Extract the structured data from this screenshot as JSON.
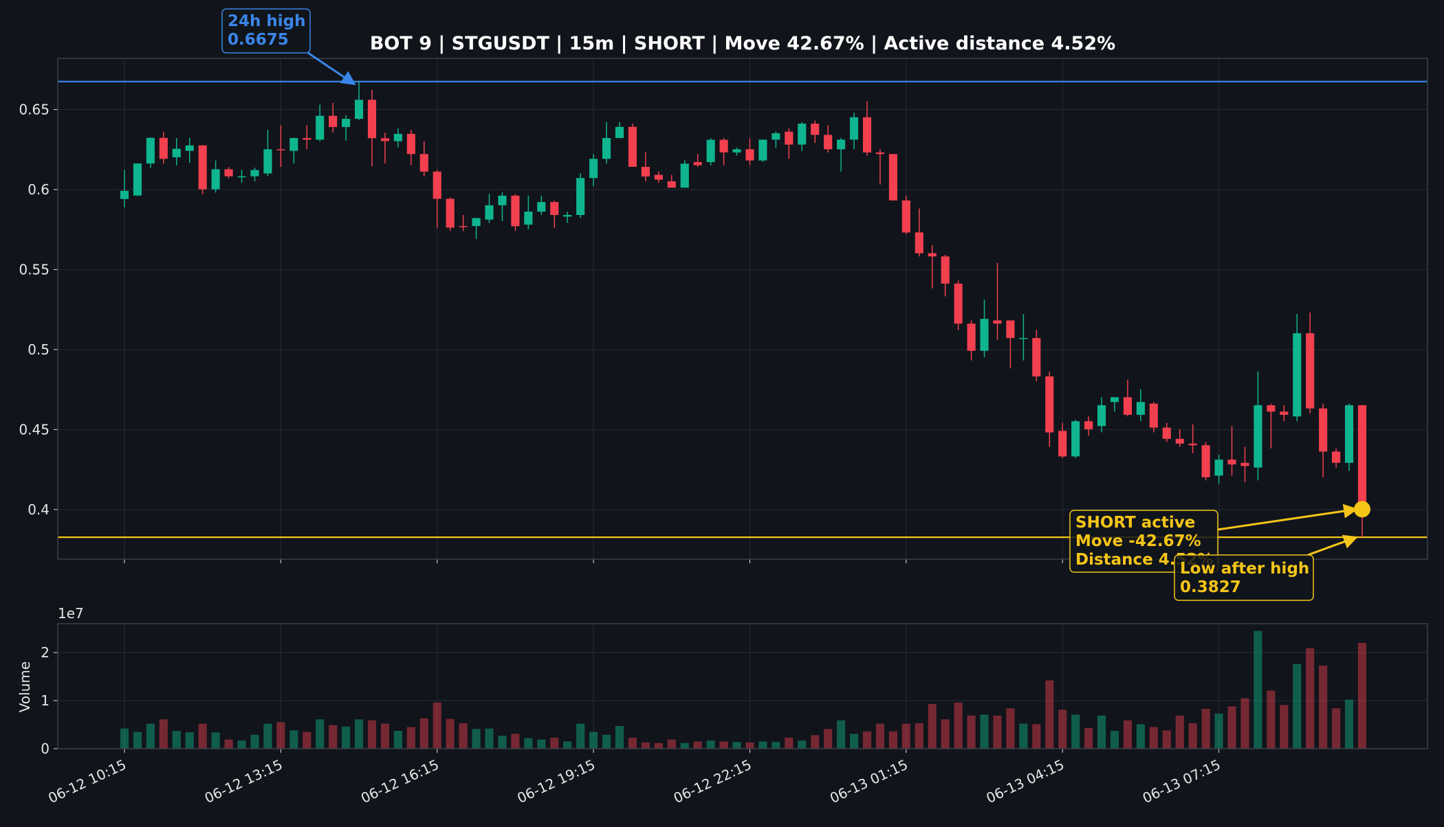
{
  "chart_data": [
    {
      "type": "candlestick",
      "title": "BOT 9 | STGUSDT | 15m | SHORT | Move 42.67% | Active distance 4.52%",
      "xlabel": "",
      "ylabel": "",
      "ylim": [
        0.369,
        0.682
      ],
      "yticks": [
        0.4,
        0.45,
        0.5,
        0.55,
        0.6,
        0.65
      ],
      "ytick_labels": [
        "0.4",
        "0.45",
        "0.5",
        "0.55",
        "0.6",
        "0.65"
      ],
      "xtick_labels": [
        "06-12 10:15",
        "06-12 13:15",
        "06-12 16:15",
        "06-12 19:15",
        "06-12 22:15",
        "06-13 01:15",
        "06-13 04:15",
        "06-13 07:15"
      ],
      "xtick_index": [
        0,
        12,
        24,
        36,
        48,
        60,
        72,
        84
      ],
      "grid": true,
      "colors": {
        "up": "#0fb58e",
        "down": "#f2404f",
        "high_line": "#3a86e8",
        "low_line": "#f5c518",
        "background": "#11141b",
        "grid": "#262b35"
      },
      "candles": [
        [
          0.5941,
          0.6122,
          0.5889,
          0.5992
        ],
        [
          0.5963,
          0.6162,
          0.5959,
          0.6163
        ],
        [
          0.6163,
          0.6327,
          0.6137,
          0.6323
        ],
        [
          0.6323,
          0.6362,
          0.6162,
          0.6192
        ],
        [
          0.6202,
          0.6322,
          0.6151,
          0.6255
        ],
        [
          0.6242,
          0.6323,
          0.6168,
          0.6276
        ],
        [
          0.6276,
          0.6278,
          0.5971,
          0.6002
        ],
        [
          0.6002,
          0.6182,
          0.5981,
          0.6127
        ],
        [
          0.6127,
          0.6141,
          0.6069,
          0.6083
        ],
        [
          0.6083,
          0.6123,
          0.6043,
          0.6083
        ],
        [
          0.6083,
          0.6137,
          0.6051,
          0.6122
        ],
        [
          0.6101,
          0.6374,
          0.6084,
          0.6252
        ],
        [
          0.6252,
          0.6402,
          0.6142,
          0.6251
        ],
        [
          0.6242,
          0.6326,
          0.6163,
          0.6322
        ],
        [
          0.6322,
          0.6402,
          0.6252,
          0.6312
        ],
        [
          0.6312,
          0.6531,
          0.6302,
          0.6461
        ],
        [
          0.6461,
          0.6542,
          0.6356,
          0.6391
        ],
        [
          0.6391,
          0.6464,
          0.6306,
          0.6442
        ],
        [
          0.6442,
          0.6675,
          0.6435,
          0.6561
        ],
        [
          0.6561,
          0.6623,
          0.6145,
          0.6321
        ],
        [
          0.6321,
          0.6356,
          0.6163,
          0.6303
        ],
        [
          0.6302,
          0.6383,
          0.6263,
          0.6348
        ],
        [
          0.6348,
          0.6373,
          0.6153,
          0.6222
        ],
        [
          0.6222,
          0.6302,
          0.6082,
          0.6112
        ],
        [
          0.6112,
          0.6123,
          0.5761,
          0.5942
        ],
        [
          0.5942,
          0.5951,
          0.5742,
          0.5762
        ],
        [
          0.5772,
          0.5841,
          0.5741,
          0.5771
        ],
        [
          0.5772,
          0.5821,
          0.5691,
          0.5822
        ],
        [
          0.5812,
          0.5974,
          0.5791,
          0.5902
        ],
        [
          0.5902,
          0.5983,
          0.5803,
          0.5962
        ],
        [
          0.5962,
          0.5971,
          0.5742,
          0.5771
        ],
        [
          0.5781,
          0.5962,
          0.5751,
          0.5862
        ],
        [
          0.5862,
          0.5962,
          0.5842,
          0.5922
        ],
        [
          0.5922,
          0.5931,
          0.5762,
          0.5841
        ],
        [
          0.5831,
          0.5861,
          0.5792,
          0.5841
        ],
        [
          0.5841,
          0.6102,
          0.5822,
          0.6072
        ],
        [
          0.6072,
          0.6221,
          0.6021,
          0.6192
        ],
        [
          0.6192,
          0.6422,
          0.6162,
          0.6322
        ],
        [
          0.6322,
          0.6422,
          0.6322,
          0.6392
        ],
        [
          0.6392,
          0.6412,
          0.6142,
          0.6142
        ],
        [
          0.6142,
          0.6233,
          0.6052,
          0.6082
        ],
        [
          0.6092,
          0.6113,
          0.6042,
          0.6062
        ],
        [
          0.6052,
          0.6092,
          0.6012,
          0.6012
        ],
        [
          0.6012,
          0.6183,
          0.6012,
          0.6162
        ],
        [
          0.6172,
          0.6222,
          0.6142,
          0.6152
        ],
        [
          0.6172,
          0.6322,
          0.6152,
          0.6311
        ],
        [
          0.6311,
          0.6322,
          0.6152,
          0.6232
        ],
        [
          0.6232,
          0.6262,
          0.6212,
          0.6252
        ],
        [
          0.6252,
          0.6321,
          0.6152,
          0.6182
        ],
        [
          0.6182,
          0.6312,
          0.6172,
          0.6312
        ],
        [
          0.6312,
          0.6363,
          0.6262,
          0.6352
        ],
        [
          0.6362,
          0.6383,
          0.6193,
          0.6281
        ],
        [
          0.6281,
          0.6422,
          0.6242,
          0.6412
        ],
        [
          0.6412,
          0.6432,
          0.6292,
          0.6342
        ],
        [
          0.6342,
          0.6402,
          0.6232,
          0.6252
        ],
        [
          0.6252,
          0.6322,
          0.6112,
          0.6312
        ],
        [
          0.6312,
          0.6481,
          0.6252,
          0.6452
        ],
        [
          0.6452,
          0.6552,
          0.6212,
          0.6232
        ],
        [
          0.6232,
          0.6252,
          0.6031,
          0.6222
        ],
        [
          0.6222,
          0.6222,
          0.5933,
          0.5932
        ],
        [
          0.5932,
          0.5962,
          0.5721,
          0.5732
        ],
        [
          0.5732,
          0.5882,
          0.5582,
          0.5602
        ],
        [
          0.5602,
          0.5652,
          0.5382,
          0.5582
        ],
        [
          0.5582,
          0.5592,
          0.5332,
          0.5412
        ],
        [
          0.5412,
          0.5432,
          0.5122,
          0.5162
        ],
        [
          0.5162,
          0.5182,
          0.4932,
          0.4992
        ],
        [
          0.4992,
          0.5312,
          0.4952,
          0.5192
        ],
        [
          0.5182,
          0.5542,
          0.5062,
          0.5162
        ],
        [
          0.5182,
          0.5182,
          0.4882,
          0.5072
        ],
        [
          0.5072,
          0.5222,
          0.4932,
          0.5072
        ],
        [
          0.5072,
          0.5122,
          0.4802,
          0.4832
        ],
        [
          0.4832,
          0.4862,
          0.4392,
          0.4482
        ],
        [
          0.4492,
          0.4542,
          0.4322,
          0.4332
        ],
        [
          0.4332,
          0.4562,
          0.4322,
          0.4552
        ],
        [
          0.4552,
          0.4582,
          0.4462,
          0.4502
        ],
        [
          0.4522,
          0.4702,
          0.4482,
          0.4652
        ],
        [
          0.4672,
          0.4702,
          0.4612,
          0.4702
        ],
        [
          0.4702,
          0.4812,
          0.4582,
          0.4592
        ],
        [
          0.4592,
          0.4752,
          0.4552,
          0.4672
        ],
        [
          0.4662,
          0.4672,
          0.4482,
          0.4512
        ],
        [
          0.4512,
          0.4542,
          0.4422,
          0.4442
        ],
        [
          0.4442,
          0.4502,
          0.4392,
          0.4412
        ],
        [
          0.4412,
          0.4532,
          0.4352,
          0.4402
        ],
        [
          0.4402,
          0.4422,
          0.4182,
          0.4202
        ],
        [
          0.4212,
          0.4342,
          0.4162,
          0.4312
        ],
        [
          0.4312,
          0.4522,
          0.4212,
          0.4282
        ],
        [
          0.4292,
          0.4392,
          0.4172,
          0.4272
        ],
        [
          0.4262,
          0.4862,
          0.4182,
          0.4652
        ],
        [
          0.4652,
          0.4662,
          0.4382,
          0.4612
        ],
        [
          0.4612,
          0.4652,
          0.4552,
          0.4592
        ],
        [
          0.4582,
          0.5222,
          0.4552,
          0.5102
        ],
        [
          0.5102,
          0.5232,
          0.4602,
          0.4632
        ],
        [
          0.4632,
          0.4662,
          0.4202,
          0.4362
        ],
        [
          0.4362,
          0.4382,
          0.4262,
          0.4292
        ],
        [
          0.4292,
          0.4662,
          0.4242,
          0.4652
        ],
        [
          0.4652,
          0.4652,
          0.3827,
          0.4002
        ]
      ],
      "annotations": [
        {
          "name": "high",
          "lines": [
            "24h high",
            "0.6675"
          ],
          "target_index": 18,
          "target_value": 0.6675,
          "color": "#3a86e8"
        },
        {
          "name": "short-active",
          "lines": [
            "SHORT active",
            "Move -42.67%",
            "Distance 4.52%"
          ],
          "target_index": 95,
          "target_value": 0.4002,
          "color": "#f5c518"
        },
        {
          "name": "low",
          "lines": [
            "Low after high",
            "0.3827"
          ],
          "target_index": 95,
          "target_value": 0.3827,
          "color": "#f5c518"
        }
      ],
      "hlines": [
        {
          "name": "24h-high-line",
          "value": 0.6675,
          "color": "#3a86e8"
        },
        {
          "name": "low-line",
          "value": 0.3827,
          "color": "#f5c518"
        }
      ]
    },
    {
      "type": "bar",
      "ylabel": "Volume",
      "scale_label": "1e7",
      "ylim": [
        0,
        2.6
      ],
      "yticks": [
        0,
        1,
        2
      ],
      "ytick_labels": [
        "0",
        "1",
        "2"
      ],
      "values_1e7": [
        0.42,
        0.35,
        0.52,
        0.61,
        0.37,
        0.34,
        0.52,
        0.34,
        0.19,
        0.17,
        0.29,
        0.52,
        0.55,
        0.38,
        0.35,
        0.61,
        0.49,
        0.46,
        0.61,
        0.59,
        0.52,
        0.37,
        0.45,
        0.63,
        0.96,
        0.62,
        0.53,
        0.41,
        0.42,
        0.27,
        0.31,
        0.22,
        0.19,
        0.23,
        0.15,
        0.52,
        0.35,
        0.29,
        0.47,
        0.23,
        0.13,
        0.12,
        0.19,
        0.12,
        0.15,
        0.17,
        0.15,
        0.14,
        0.13,
        0.15,
        0.14,
        0.23,
        0.17,
        0.28,
        0.41,
        0.59,
        0.31,
        0.36,
        0.52,
        0.36,
        0.52,
        0.53,
        0.93,
        0.61,
        0.96,
        0.69,
        0.71,
        0.69,
        0.84,
        0.52,
        0.51,
        1.42,
        0.81,
        0.71,
        0.43,
        0.69,
        0.37,
        0.59,
        0.51,
        0.45,
        0.38,
        0.69,
        0.53,
        0.83,
        0.73,
        0.88,
        1.05,
        2.45,
        1.21,
        0.91,
        1.76,
        2.09,
        1.73,
        0.84,
        1.02,
        2.2
      ]
    }
  ]
}
